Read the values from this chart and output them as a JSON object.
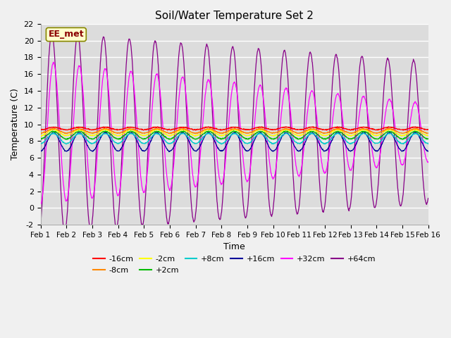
{
  "title": "Soil/Water Temperature Set 2",
  "xlabel": "Time",
  "ylabel": "Temperature (C)",
  "ylim": [
    -2,
    22
  ],
  "xlim": [
    0,
    15
  ],
  "x_tick_labels": [
    "Feb 1",
    "Feb 2",
    "Feb 3",
    "Feb 4",
    "Feb 5",
    "Feb 6",
    "Feb 7",
    "Feb 8",
    "Feb 9",
    "Feb 10",
    "Feb 11",
    "Feb 12",
    "Feb 13",
    "Feb 14",
    "Feb 15",
    "Feb 16"
  ],
  "yticks": [
    -2,
    0,
    2,
    4,
    6,
    8,
    10,
    12,
    14,
    16,
    18,
    20,
    22
  ],
  "annotation": "EE_met",
  "fig_facecolor": "#f0f0f0",
  "ax_facecolor": "#dcdcdc",
  "grid_color": "#ffffff",
  "series_colors": {
    "n16": "#ff0000",
    "n8": "#ff8800",
    "n2": "#ffff00",
    "p2": "#00bb00",
    "p8": "#00cccc",
    "p16": "#000099",
    "p32": "#ff00ff",
    "p64": "#880088"
  },
  "legend_labels": [
    "-16cm",
    "-8cm",
    "-2cm",
    "+2cm",
    "+8cm",
    "+16cm",
    "+32cm",
    "+64cm"
  ]
}
